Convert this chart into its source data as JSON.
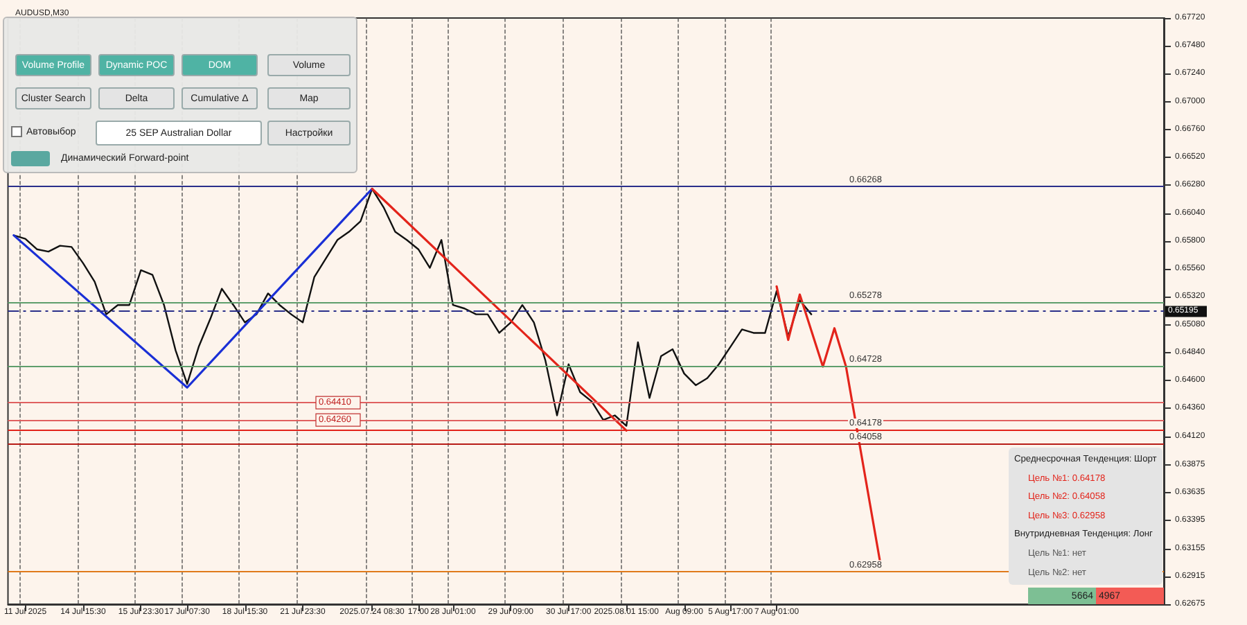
{
  "chart_data": {
    "type": "line",
    "title": "AUDUSD,M30",
    "categories": [
      null,
      "11 Jul 2025",
      null,
      null,
      null,
      null,
      "14 Jul 15:30",
      null,
      null,
      null,
      null,
      "15 Jul 23:30",
      null,
      null,
      null,
      "17 Jul 07:30",
      null,
      null,
      null,
      null,
      "18 Jul 15:30",
      null,
      null,
      null,
      null,
      "21 Jul 23:30",
      null,
      null,
      null,
      null,
      null,
      "2025.07.24 08:30",
      null,
      null,
      null,
      "17:00",
      null,
      null,
      "28 Jul 01:00",
      null,
      null,
      null,
      null,
      "29 Jul 09:00",
      null,
      null,
      null,
      null,
      "30 Jul 17:00",
      null,
      null,
      null,
      null,
      "2025.08.01 15:00",
      null,
      null,
      null,
      null,
      "Aug 09:00",
      null,
      null,
      null,
      "5 Aug 17:00",
      null,
      null,
      null,
      "7 Aug 01:00",
      null,
      null,
      null,
      null,
      null,
      null,
      null,
      null,
      null,
      null,
      null,
      null,
      null,
      null,
      null,
      null,
      null,
      null,
      null,
      null,
      null,
      null,
      null,
      null,
      null,
      null,
      null,
      null,
      null,
      null,
      null,
      null,
      null
    ],
    "ylim": [
      0.62675,
      0.6772
    ],
    "yticks": [
      {
        "value": 0.62675,
        "label": "0.62675"
      },
      {
        "value": 0.62915,
        "label": "0.62915"
      },
      {
        "value": 0.63155,
        "label": "0.63155"
      },
      {
        "value": 0.63395,
        "label": "0.63395"
      },
      {
        "value": 0.63635,
        "label": "0.63635"
      },
      {
        "value": 0.63875,
        "label": "0.63875"
      },
      {
        "value": 0.6412,
        "label": "0.64120"
      },
      {
        "value": 0.6436,
        "label": "0.64360"
      },
      {
        "value": 0.646,
        "label": "0.64600"
      },
      {
        "value": 0.6484,
        "label": "0.64840"
      },
      {
        "value": 0.6508,
        "label": "0.65080"
      },
      {
        "value": 0.6532,
        "label": "0.65320"
      },
      {
        "value": 0.6556,
        "label": "0.65560"
      },
      {
        "value": 0.658,
        "label": "0.65800"
      },
      {
        "value": 0.6604,
        "label": "0.66040"
      },
      {
        "value": 0.6628,
        "label": "0.66280"
      },
      {
        "value": 0.6652,
        "label": "0.66520"
      },
      {
        "value": 0.6676,
        "label": "0.66760"
      },
      {
        "value": 0.67,
        "label": "0.67000"
      },
      {
        "value": 0.6724,
        "label": "0.67240"
      },
      {
        "value": 0.6748,
        "label": "0.67480"
      },
      {
        "value": 0.6772,
        "label": "0.67720"
      }
    ],
    "series": [
      {
        "color": "#111111",
        "values": [
          0.6585,
          0.6582,
          0.6573,
          0.6571,
          0.6576,
          0.6575,
          0.6561,
          0.6545,
          0.6517,
          0.6525,
          0.6525,
          0.6555,
          0.6551,
          0.6525,
          0.6486,
          0.6457,
          0.6489,
          0.6513,
          0.6539,
          0.6525,
          0.651,
          0.6517,
          0.6535,
          0.6525,
          0.6517,
          0.651,
          0.6549,
          0.6565,
          0.6581,
          0.6588,
          0.6597,
          0.6625,
          0.6609,
          0.6588,
          0.6581,
          0.6573,
          0.6557,
          0.6581,
          0.6525,
          0.6522,
          0.6517,
          0.6517,
          0.6501,
          0.651,
          0.6525,
          0.651,
          0.6477,
          0.643,
          0.6474,
          0.645,
          0.6442,
          0.6426,
          0.643,
          0.6421,
          0.6493,
          0.6445,
          0.6481,
          0.6487,
          0.6466,
          0.6456,
          0.6462,
          0.6474,
          0.6489,
          0.6504,
          0.6501,
          0.6501,
          0.6537,
          0.6498,
          0.6529,
          0.6517,
          null,
          null,
          null,
          null,
          null,
          null,
          null,
          null,
          null,
          null,
          null,
          null,
          null,
          null,
          null,
          null,
          null,
          null,
          null,
          null,
          null,
          null,
          null,
          null,
          null,
          null,
          null,
          null,
          null,
          null
        ]
      },
      {
        "color": "#1a2fd6",
        "values": [
          0.6585,
          null,
          null,
          null,
          null,
          null,
          null,
          null,
          null,
          null,
          null,
          null,
          null,
          null,
          null,
          0.6454,
          null,
          null,
          null,
          null,
          null,
          null,
          null,
          null,
          null,
          null,
          null,
          null,
          null,
          null,
          null,
          0.6625,
          null,
          null,
          null,
          null,
          null,
          null,
          null,
          null,
          null,
          null,
          null,
          null,
          null,
          null,
          null,
          null,
          null,
          null,
          null,
          null,
          null,
          null,
          null,
          null,
          null,
          null,
          null,
          null,
          null,
          null,
          null,
          null,
          null,
          null,
          null,
          null,
          null,
          null,
          null,
          null,
          null,
          null,
          null,
          null,
          null,
          null,
          null,
          null,
          null,
          null,
          null,
          null,
          null,
          null,
          null,
          null,
          null,
          null,
          null,
          null,
          null,
          null,
          null,
          null,
          null,
          null,
          null,
          null
        ]
      },
      {
        "color": "#e3241b",
        "values": [
          null,
          null,
          null,
          null,
          null,
          null,
          null,
          null,
          null,
          null,
          null,
          null,
          null,
          null,
          null,
          null,
          null,
          null,
          null,
          null,
          null,
          null,
          null,
          null,
          null,
          null,
          null,
          null,
          null,
          null,
          null,
          0.6625,
          null,
          null,
          null,
          null,
          null,
          null,
          null,
          null,
          null,
          null,
          null,
          null,
          null,
          null,
          null,
          null,
          null,
          null,
          null,
          null,
          null,
          0.6417,
          null,
          null,
          null,
          null,
          null,
          null,
          null,
          null,
          null,
          null,
          null,
          null,
          null,
          null,
          null,
          null,
          null,
          null,
          null,
          null,
          null,
          null,
          null,
          null,
          null,
          null,
          null,
          null,
          null,
          null,
          null,
          null,
          null,
          null,
          null,
          null,
          null,
          null,
          null,
          null,
          null,
          null,
          null,
          null,
          null,
          null
        ]
      },
      {
        "color": "#e3241b",
        "values": [
          null,
          null,
          null,
          null,
          null,
          null,
          null,
          null,
          null,
          null,
          null,
          null,
          null,
          null,
          null,
          null,
          null,
          null,
          null,
          null,
          null,
          null,
          null,
          null,
          null,
          null,
          null,
          null,
          null,
          null,
          null,
          null,
          null,
          null,
          null,
          null,
          null,
          null,
          null,
          null,
          null,
          null,
          null,
          null,
          null,
          null,
          null,
          null,
          null,
          null,
          null,
          null,
          null,
          null,
          null,
          null,
          null,
          null,
          null,
          null,
          null,
          null,
          null,
          null,
          null,
          null,
          0.6541,
          0.6495,
          0.6534,
          null,
          0.6472,
          0.6505,
          0.6472,
          null,
          null,
          0.6301,
          null,
          null,
          null,
          null,
          null,
          null,
          null,
          null,
          null,
          null,
          null,
          null,
          null,
          null,
          null,
          null,
          null,
          null,
          null,
          null,
          null,
          null,
          null,
          null
        ]
      }
    ],
    "ref_lines": [
      {
        "axis": "y",
        "value": 0.66268,
        "label": "0.66268",
        "color": "#2a2f8a",
        "line_style": "solid"
      },
      {
        "axis": "y",
        "value": 0.65278,
        "label": "0.65278",
        "color": "#5e9e6c",
        "line_style": "solid"
      },
      {
        "axis": "y",
        "value": 0.65195,
        "label": "0.65195",
        "color": "#2a2f8a",
        "line_style": "dashed"
      },
      {
        "axis": "y",
        "value": 0.64728,
        "label": "0.64728",
        "color": "#5e9e6c",
        "line_style": "solid"
      },
      {
        "axis": "y",
        "value": 0.6441,
        "label": "0.64410",
        "color": "#e06060",
        "line_style": "solid"
      },
      {
        "axis": "y",
        "value": 0.6426,
        "label": "0.64260",
        "color": "#e06060",
        "line_style": "solid"
      },
      {
        "axis": "y",
        "value": 0.64178,
        "label": "0.64178",
        "color": "#e3241b",
        "line_style": "solid"
      },
      {
        "axis": "y",
        "value": 0.64058,
        "label": "0.64058",
        "color": "#b81c16",
        "line_style": "solid"
      },
      {
        "axis": "y",
        "value": 0.62958,
        "label": "0.62958",
        "color": "#e07a1a",
        "line_style": "solid"
      }
    ],
    "annotations": [
      "Volume Profile",
      "Dynamic POC",
      "DOM",
      "Volume",
      "Cluster Search",
      "Delta",
      "Cumulative Δ",
      "Map",
      "Автовыбор",
      "25 SEP Australian Dollar",
      "Настройки",
      "Динамический Forward-point",
      "Среднесрочная Тенденция: Шорт",
      "Цель №1: 0.64178",
      "Цель №2: 0.64058",
      "Цель №3: 0.62958",
      "Внутридневная Тенденция: Лонг",
      "Цель №1: нет",
      "Цель №2: нет",
      "5664",
      "4967"
    ],
    "grid": "x",
    "marker": "none",
    "line_style": "solid"
  }
}
